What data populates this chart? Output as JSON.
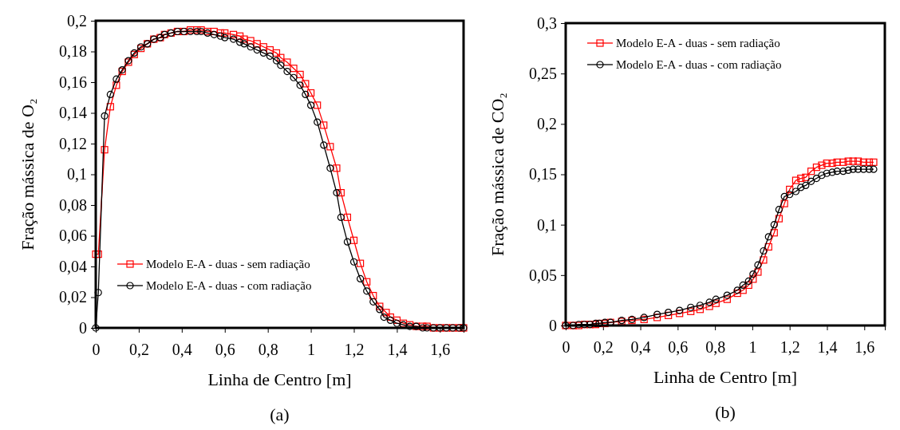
{
  "chart_data": [
    {
      "type": "line",
      "title": "(a)",
      "xlabel": "Linha de Centro [m]",
      "ylabel": "Fração mássica de O₂",
      "xlim": [
        0,
        1.71
      ],
      "ylim": [
        0,
        0.2
      ],
      "xticks": [
        {
          "value": 0,
          "label": "0"
        },
        {
          "value": 0.2,
          "label": "0,2"
        },
        {
          "value": 0.4,
          "label": "0,4"
        },
        {
          "value": 0.6,
          "label": "0,6"
        },
        {
          "value": 0.8,
          "label": "0,8"
        },
        {
          "value": 1,
          "label": "1"
        },
        {
          "value": 1.2,
          "label": "1,2"
        },
        {
          "value": 1.4,
          "label": "1,4"
        },
        {
          "value": 1.6,
          "label": "1,6"
        }
      ],
      "yticks": [
        {
          "value": 0,
          "label": "0"
        },
        {
          "value": 0.02,
          "label": "0,02"
        },
        {
          "value": 0.04,
          "label": "0,04"
        },
        {
          "value": 0.06,
          "label": "0,06"
        },
        {
          "value": 0.08,
          "label": "0,08"
        },
        {
          "value": 0.1,
          "label": "0,1"
        },
        {
          "value": 0.12,
          "label": "0,12"
        },
        {
          "value": 0.14,
          "label": "0,14"
        },
        {
          "value": 0.16,
          "label": "0,16"
        },
        {
          "value": 0.18,
          "label": "0,18"
        },
        {
          "value": 0.2,
          "label": "0,2"
        }
      ],
      "grid": false,
      "legend": "bottom left",
      "series": [
        {
          "name": "Modelo E-A - duas - sem radiação",
          "color": "#ff0000",
          "marker": "square",
          "x": [
            0,
            0.012,
            0.041,
            0.068,
            0.096,
            0.123,
            0.152,
            0.179,
            0.21,
            0.24,
            0.27,
            0.3,
            0.32,
            0.35,
            0.38,
            0.41,
            0.44,
            0.47,
            0.49,
            0.52,
            0.55,
            0.58,
            0.6,
            0.64,
            0.67,
            0.69,
            0.72,
            0.75,
            0.78,
            0.81,
            0.84,
            0.86,
            0.89,
            0.92,
            0.95,
            0.975,
            1.0,
            1.03,
            1.06,
            1.09,
            1.12,
            1.14,
            1.17,
            1.2,
            1.23,
            1.26,
            1.29,
            1.32,
            1.35,
            1.37,
            1.4,
            1.43,
            1.46,
            1.49,
            1.52,
            1.54,
            1.57,
            1.6,
            1.63,
            1.66,
            1.69,
            1.71
          ],
          "values": [
            0.048,
            0.048,
            0.116,
            0.144,
            0.158,
            0.167,
            0.173,
            0.178,
            0.182,
            0.185,
            0.188,
            0.189,
            0.191,
            0.192,
            0.193,
            0.193,
            0.194,
            0.194,
            0.194,
            0.193,
            0.193,
            0.192,
            0.192,
            0.191,
            0.19,
            0.188,
            0.187,
            0.185,
            0.183,
            0.181,
            0.179,
            0.176,
            0.173,
            0.169,
            0.165,
            0.159,
            0.153,
            0.145,
            0.132,
            0.118,
            0.104,
            0.088,
            0.072,
            0.057,
            0.042,
            0.03,
            0.021,
            0.014,
            0.01,
            0.007,
            0.005,
            0.003,
            0.002,
            0.001,
            0.001,
            0.001,
            0,
            0,
            0,
            0,
            0,
            0
          ]
        },
        {
          "name": "Modelo E-A - duas - com radiação",
          "color": "#000000",
          "marker": "circle",
          "x": [
            0,
            0.012,
            0.041,
            0.068,
            0.096,
            0.123,
            0.152,
            0.179,
            0.21,
            0.24,
            0.27,
            0.3,
            0.32,
            0.35,
            0.38,
            0.41,
            0.44,
            0.47,
            0.49,
            0.52,
            0.55,
            0.58,
            0.6,
            0.64,
            0.67,
            0.69,
            0.72,
            0.75,
            0.78,
            0.81,
            0.84,
            0.86,
            0.89,
            0.92,
            0.95,
            0.975,
            1.0,
            1.03,
            1.06,
            1.09,
            1.12,
            1.14,
            1.17,
            1.2,
            1.23,
            1.26,
            1.29,
            1.32,
            1.34,
            1.37,
            1.4,
            1.43,
            1.46,
            1.49,
            1.52,
            1.54,
            1.57,
            1.6,
            1.63,
            1.66,
            1.69,
            1.71
          ],
          "values": [
            0,
            0.023,
            0.138,
            0.152,
            0.162,
            0.168,
            0.174,
            0.179,
            0.183,
            0.185,
            0.188,
            0.189,
            0.191,
            0.192,
            0.193,
            0.193,
            0.193,
            0.193,
            0.193,
            0.192,
            0.191,
            0.19,
            0.189,
            0.188,
            0.186,
            0.185,
            0.183,
            0.181,
            0.179,
            0.177,
            0.174,
            0.171,
            0.167,
            0.163,
            0.158,
            0.152,
            0.145,
            0.134,
            0.119,
            0.104,
            0.088,
            0.072,
            0.056,
            0.043,
            0.032,
            0.024,
            0.017,
            0.012,
            0.007,
            0.005,
            0.003,
            0.002,
            0.001,
            0.001,
            0,
            0,
            0,
            0,
            0,
            0,
            0,
            0
          ]
        }
      ]
    },
    {
      "type": "line",
      "title": "(b)",
      "xlabel": "Linha de Centro [m]",
      "ylabel": "Fração mássica de CO₂",
      "xlim": [
        0,
        1.71
      ],
      "ylim": [
        0,
        0.3
      ],
      "xticks": [
        {
          "value": 0,
          "label": "0"
        },
        {
          "value": 0.2,
          "label": "0,2"
        },
        {
          "value": 0.4,
          "label": "0,4"
        },
        {
          "value": 0.6,
          "label": "0,6"
        },
        {
          "value": 0.8,
          "label": "0,8"
        },
        {
          "value": 1,
          "label": "1"
        },
        {
          "value": 1.2,
          "label": "1,2"
        },
        {
          "value": 1.4,
          "label": "1,4"
        },
        {
          "value": 1.6,
          "label": "1,6"
        }
      ],
      "yticks": [
        {
          "value": 0,
          "label": "0"
        },
        {
          "value": 0.05,
          "label": "0,05"
        },
        {
          "value": 0.1,
          "label": "0,1"
        },
        {
          "value": 0.15,
          "label": "0,15"
        },
        {
          "value": 0.2,
          "label": "0,2"
        },
        {
          "value": 0.25,
          "label": "0,25"
        },
        {
          "value": 0.3,
          "label": "0,3"
        }
      ],
      "grid": false,
      "legend": "top left",
      "series": [
        {
          "name": "Modelo E-A - duas - sem radiação",
          "color": "#ff0000",
          "marker": "square",
          "x": [
            0,
            0.04,
            0.07,
            0.1,
            0.13,
            0.16,
            0.18,
            0.21,
            0.24,
            0.3,
            0.355,
            0.42,
            0.49,
            0.55,
            0.61,
            0.67,
            0.72,
            0.77,
            0.805,
            0.865,
            0.92,
            0.95,
            0.98,
            1.004,
            1.03,
            1.06,
            1.087,
            1.117,
            1.143,
            1.172,
            1.2,
            1.233,
            1.26,
            1.286,
            1.315,
            1.344,
            1.372,
            1.399,
            1.428,
            1.454,
            1.487,
            1.514,
            1.54,
            1.567,
            1.596,
            1.626,
            1.65
          ],
          "values": [
            0,
            0,
            0,
            0.001,
            0.001,
            0.001,
            0.002,
            0.002,
            0.003,
            0.004,
            0.005,
            0.006,
            0.008,
            0.01,
            0.012,
            0.014,
            0.016,
            0.019,
            0.022,
            0.026,
            0.032,
            0.035,
            0.04,
            0.046,
            0.053,
            0.065,
            0.078,
            0.092,
            0.106,
            0.121,
            0.135,
            0.144,
            0.146,
            0.147,
            0.153,
            0.157,
            0.159,
            0.161,
            0.161,
            0.162,
            0.162,
            0.163,
            0.163,
            0.163,
            0.162,
            0.162,
            0.162
          ]
        },
        {
          "name": "Modelo E-A - duas - com radiação",
          "color": "#000000",
          "marker": "circle",
          "x": [
            0,
            0.04,
            0.07,
            0.1,
            0.13,
            0.16,
            0.18,
            0.21,
            0.24,
            0.3,
            0.355,
            0.42,
            0.49,
            0.55,
            0.61,
            0.67,
            0.72,
            0.77,
            0.805,
            0.865,
            0.92,
            0.95,
            0.98,
            1.004,
            1.03,
            1.06,
            1.087,
            1.117,
            1.143,
            1.172,
            1.2,
            1.233,
            1.26,
            1.286,
            1.315,
            1.344,
            1.372,
            1.399,
            1.428,
            1.454,
            1.487,
            1.514,
            1.54,
            1.567,
            1.596,
            1.626,
            1.65
          ],
          "values": [
            0,
            0,
            0.001,
            0.001,
            0.001,
            0.002,
            0.002,
            0.003,
            0.003,
            0.005,
            0.006,
            0.008,
            0.011,
            0.013,
            0.015,
            0.018,
            0.02,
            0.023,
            0.026,
            0.03,
            0.035,
            0.04,
            0.044,
            0.051,
            0.06,
            0.074,
            0.088,
            0.1,
            0.115,
            0.128,
            0.13,
            0.133,
            0.137,
            0.139,
            0.143,
            0.146,
            0.149,
            0.151,
            0.152,
            0.153,
            0.153,
            0.154,
            0.155,
            0.155,
            0.155,
            0.155,
            0.155
          ]
        }
      ]
    }
  ]
}
